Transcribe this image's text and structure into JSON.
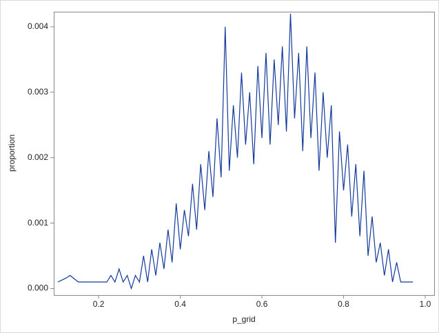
{
  "chart_data": {
    "type": "line",
    "xlabel": "p_grid",
    "ylabel": "proportion",
    "x": [
      0.1,
      0.11,
      0.12,
      0.13,
      0.14,
      0.15,
      0.16,
      0.17,
      0.18,
      0.19,
      0.2,
      0.21,
      0.22,
      0.23,
      0.24,
      0.25,
      0.26,
      0.27,
      0.28,
      0.29,
      0.3,
      0.31,
      0.32,
      0.33,
      0.34,
      0.35,
      0.36,
      0.37,
      0.38,
      0.39,
      0.4,
      0.41,
      0.42,
      0.43,
      0.44,
      0.45,
      0.46,
      0.47,
      0.48,
      0.49,
      0.5,
      0.51,
      0.52,
      0.53,
      0.54,
      0.55,
      0.56,
      0.57,
      0.58,
      0.59,
      0.6,
      0.61,
      0.62,
      0.63,
      0.64,
      0.65,
      0.66,
      0.67,
      0.68,
      0.69,
      0.7,
      0.71,
      0.72,
      0.73,
      0.74,
      0.75,
      0.76,
      0.77,
      0.78,
      0.79,
      0.8,
      0.81,
      0.82,
      0.83,
      0.84,
      0.85,
      0.86,
      0.87,
      0.88,
      0.89,
      0.9,
      0.91,
      0.92,
      0.93,
      0.94,
      0.95,
      0.96,
      0.97
    ],
    "series": [
      {
        "name": "proportion",
        "color": "#12389b",
        "values": [
          0.0001,
          0.00013,
          0.00016,
          0.0002,
          0.00015,
          0.0001,
          0.0001,
          0.0001,
          0.0001,
          0.0001,
          0.0001,
          0.0001,
          0.0001,
          0.0002,
          0.0001,
          0.0003,
          0.0001,
          0.0002,
          0.0,
          0.0002,
          0.0001,
          0.0005,
          0.0001,
          0.0006,
          0.0002,
          0.0007,
          0.0003,
          0.0009,
          0.0004,
          0.0013,
          0.0006,
          0.0012,
          0.0008,
          0.0016,
          0.0009,
          0.0019,
          0.0012,
          0.0021,
          0.0014,
          0.0026,
          0.0017,
          0.004,
          0.0018,
          0.0028,
          0.002,
          0.0033,
          0.0022,
          0.003,
          0.0019,
          0.0034,
          0.0023,
          0.0036,
          0.0022,
          0.0035,
          0.0025,
          0.0037,
          0.0024,
          0.0042,
          0.0026,
          0.0036,
          0.0021,
          0.0037,
          0.0023,
          0.0033,
          0.0018,
          0.003,
          0.002,
          0.0028,
          0.0007,
          0.0024,
          0.0015,
          0.0022,
          0.0011,
          0.0019,
          0.0008,
          0.0018,
          0.0005,
          0.0011,
          0.0004,
          0.0007,
          0.0002,
          0.0006,
          0.0001,
          0.0004,
          0.0001,
          0.0001,
          0.0001,
          0.0001
        ]
      }
    ],
    "xlim": [
      0.09,
      1.022
    ],
    "ylim": [
      -0.0001,
      0.00423
    ],
    "xticks": [
      0.2,
      0.4,
      0.6,
      0.8,
      {
        "value": 1,
        "label": "1.0"
      }
    ],
    "yticks": [
      {
        "value": 0,
        "label": "0.000"
      },
      0.001,
      0.002,
      0.003,
      0.004
    ]
  }
}
